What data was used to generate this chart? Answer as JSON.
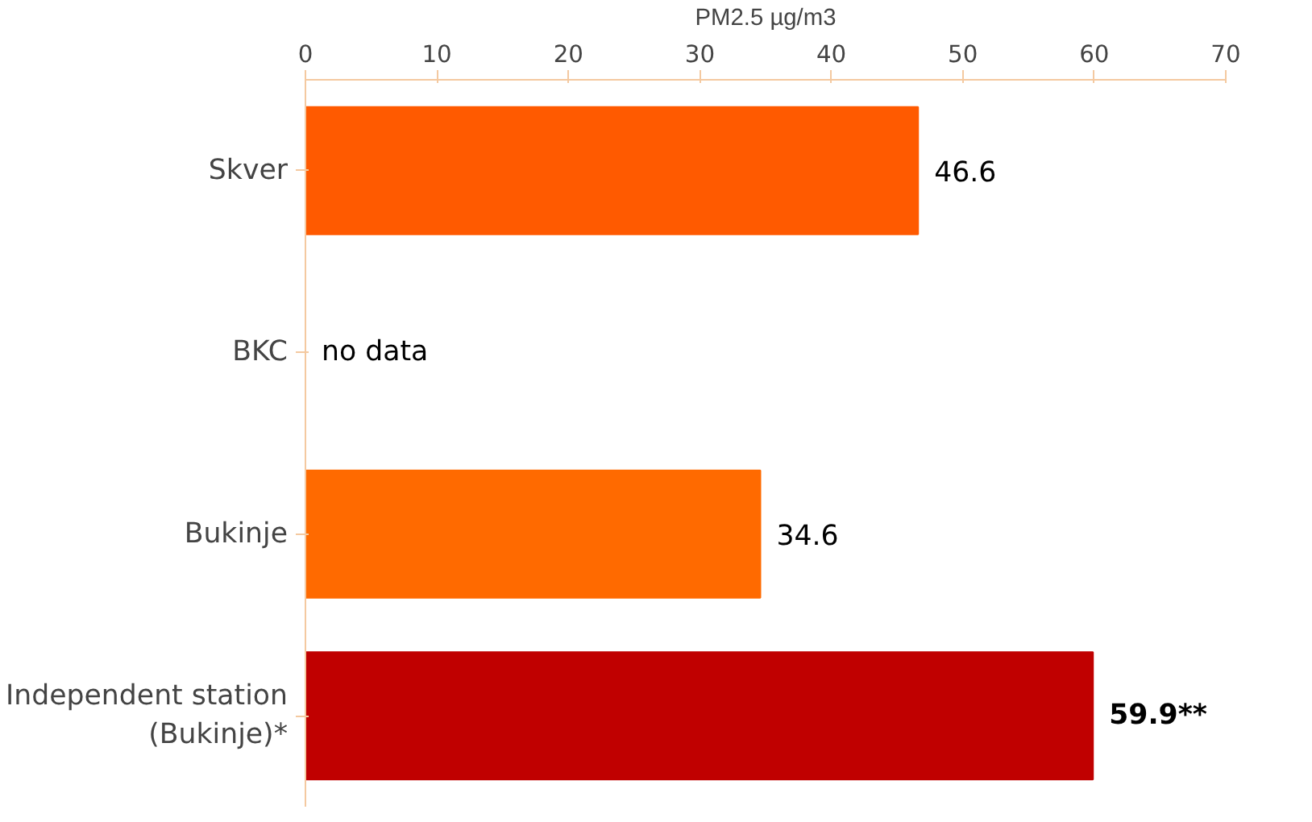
{
  "chart_data": {
    "type": "bar",
    "orientation": "horizontal",
    "xlabel": "PM2.5 µg/m3",
    "categories": [
      "Skver",
      "BKC",
      "Bukinje",
      "Independent station\n(Bukinje)*"
    ],
    "values": [
      46.6,
      null,
      34.6,
      59.9
    ],
    "colors": [
      "#ff5a00",
      "#ff5a00",
      "#ff6a00",
      "#c00000"
    ],
    "value_labels": [
      "46.6",
      "no data",
      "34.6",
      "59.9**"
    ],
    "xlim": [
      0,
      70
    ],
    "xticks": [
      0,
      10,
      20,
      30,
      40,
      50,
      60,
      70
    ],
    "grid": false
  }
}
